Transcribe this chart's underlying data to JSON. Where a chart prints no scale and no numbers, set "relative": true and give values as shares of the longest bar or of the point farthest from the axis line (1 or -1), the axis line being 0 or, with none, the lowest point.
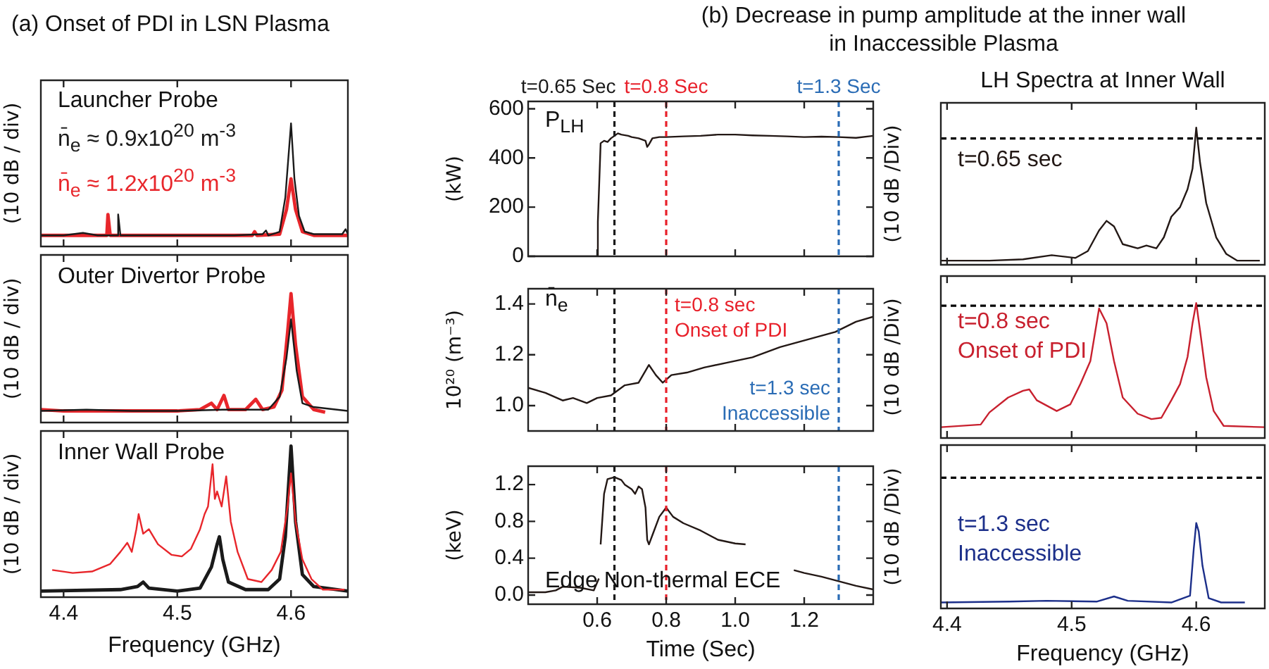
{
  "chart_data": [
    {
      "type": "line",
      "title": "(a) Onset of PDI in LSN Plasma",
      "ylabel": "(10 dB / div)",
      "relative": true,
      "xlim": [
        4.38,
        4.65
      ],
      "xticks": [
        4.4,
        4.5,
        4.6
      ],
      "tick_labels": false,
      "legend": "top left",
      "annotations": [
        "Launcher Probe"
      ],
      "series": [
        {
          "name": "n̄$_{e}$ ≈ 0.9x10$^{20}$ m$^{-3}$",
          "color": "#1a1a1a",
          "x": [
            4.38,
            4.4,
            4.417,
            4.43,
            4.447,
            4.448,
            4.45,
            4.5,
            4.55,
            4.575,
            4.578,
            4.58,
            4.59,
            4.595,
            4.6,
            4.603,
            4.607,
            4.612,
            4.62,
            4.645,
            4.648,
            4.65
          ],
          "values": [
            0.09,
            0.09,
            0.11,
            0.09,
            0.09,
            0.26,
            0.09,
            0.09,
            0.09,
            0.1,
            0.13,
            0.09,
            0.12,
            0.4,
            1.0,
            0.55,
            0.25,
            0.12,
            0.1,
            0.1,
            0.14,
            0.1
          ]
        },
        {
          "name": "n̄$_{e}$ ≈ 1.2x10$^{20}$ m$^{-3}$",
          "color": "#e8262b",
          "x": [
            4.38,
            4.42,
            4.438,
            4.439,
            4.441,
            4.5,
            4.55,
            4.566,
            4.568,
            4.57,
            4.59,
            4.596,
            4.6,
            4.604,
            4.61,
            4.62,
            4.65
          ],
          "values": [
            0.09,
            0.09,
            0.09,
            0.26,
            0.09,
            0.09,
            0.09,
            0.09,
            0.12,
            0.09,
            0.1,
            0.3,
            0.55,
            0.3,
            0.12,
            0.09,
            0.09
          ]
        }
      ]
    },
    {
      "type": "line",
      "ylabel": "(10 dB / div)",
      "relative": true,
      "xlim": [
        4.38,
        4.65
      ],
      "xticks": [
        4.4,
        4.5,
        4.6
      ],
      "tick_labels": false,
      "annotations": [
        "Outer Divertor Probe"
      ],
      "series": [
        {
          "color": "#1a1a1a",
          "x": [
            4.38,
            4.42,
            4.46,
            4.5,
            4.54,
            4.58,
            4.59,
            4.596,
            4.6,
            4.605,
            4.61,
            4.62,
            4.65
          ],
          "values": [
            0.09,
            0.1,
            0.09,
            0.09,
            0.1,
            0.1,
            0.2,
            0.5,
            0.8,
            0.4,
            0.15,
            0.12,
            0.09
          ]
        },
        {
          "color": "#e8262b",
          "x": [
            4.38,
            4.4,
            4.45,
            4.5,
            4.52,
            4.53,
            4.535,
            4.541,
            4.545,
            4.56,
            4.569,
            4.575,
            4.585,
            4.592,
            4.597,
            4.6,
            4.604,
            4.61,
            4.62,
            4.63
          ],
          "values": [
            0.1,
            0.09,
            0.09,
            0.09,
            0.1,
            0.15,
            0.1,
            0.21,
            0.1,
            0.1,
            0.18,
            0.1,
            0.12,
            0.25,
            0.7,
            1.0,
            0.6,
            0.2,
            0.1,
            0.08
          ]
        }
      ]
    },
    {
      "type": "line",
      "ylabel": "(10 dB / div)",
      "xlabel": "Frequency (GHz)",
      "relative": true,
      "xlim": [
        4.38,
        4.65
      ],
      "xticks": [
        4.4,
        4.5,
        4.6
      ],
      "annotations": [
        "Inner Wall Probe"
      ],
      "series": [
        {
          "color": "#e8262b",
          "x": [
            4.39,
            4.408,
            4.425,
            4.441,
            4.45,
            4.456,
            4.46,
            4.464,
            4.466,
            4.47,
            4.475,
            4.483,
            4.495,
            4.504,
            4.512,
            4.52,
            4.524,
            4.527,
            4.531,
            4.533,
            4.535,
            4.539,
            4.543,
            4.547,
            4.553,
            4.562,
            4.574,
            4.583,
            4.591,
            4.597,
            4.6,
            4.604,
            4.61,
            4.618,
            4.628,
            4.647
          ],
          "values": [
            0.18,
            0.16,
            0.17,
            0.22,
            0.3,
            0.36,
            0.3,
            0.45,
            0.55,
            0.42,
            0.45,
            0.35,
            0.28,
            0.27,
            0.32,
            0.45,
            0.55,
            0.6,
            0.88,
            0.65,
            0.7,
            0.6,
            0.8,
            0.5,
            0.3,
            0.12,
            0.1,
            0.18,
            0.3,
            0.6,
            0.82,
            0.5,
            0.25,
            0.12,
            0.05,
            0.05
          ]
        },
        {
          "color": "#1a1a1a",
          "x": [
            4.38,
            4.45,
            4.465,
            4.47,
            4.475,
            4.5,
            4.52,
            4.53,
            4.535,
            4.537,
            4.54,
            4.545,
            4.56,
            4.58,
            4.59,
            4.595,
            4.6,
            4.604,
            4.61,
            4.62,
            4.65
          ],
          "values": [
            0.04,
            0.05,
            0.07,
            0.1,
            0.06,
            0.04,
            0.06,
            0.2,
            0.35,
            0.4,
            0.25,
            0.1,
            0.05,
            0.05,
            0.12,
            0.4,
            1.0,
            0.5,
            0.15,
            0.07,
            0.04
          ]
        }
      ]
    },
    {
      "type": "line",
      "title": "(b) Decrease in pump amplitude at the inner wall in Inaccessible Plasma",
      "ylabel": "(kW)",
      "xlim": [
        0.4,
        1.4
      ],
      "xticks": [
        0.6,
        0.8,
        1,
        1.2
      ],
      "ylim": [
        0,
        630
      ],
      "yticks": [
        0,
        200,
        400,
        600
      ],
      "tick_labels": "y",
      "annotations": [
        "P$_{LH}$"
      ],
      "ref_lines": [
        {
          "axis": "x",
          "value": 0.65,
          "label": "t=0.65 Sec",
          "color": "#1a1a1a",
          "line_style": "dashed"
        },
        {
          "axis": "x",
          "value": 0.8,
          "label": "t=0.8 Sec",
          "color": "#e8202a",
          "line_style": "dashed"
        },
        {
          "axis": "x",
          "value": 1.3,
          "label": "t=1.3 Sec",
          "color": "#2a6cb5",
          "line_style": "dashed"
        }
      ],
      "series": [
        {
          "color": "#231815",
          "x": [
            0.4,
            0.5,
            0.6,
            0.602,
            0.61,
            0.62,
            0.63,
            0.64,
            0.65,
            0.66,
            0.67,
            0.69,
            0.7,
            0.72,
            0.74,
            0.745,
            0.75,
            0.76,
            0.78,
            0.8,
            0.85,
            0.9,
            0.95,
            1.0,
            1.05,
            1.1,
            1.15,
            1.2,
            1.25,
            1.3,
            1.35,
            1.4
          ],
          "values": [
            0,
            0,
            0,
            140,
            460,
            470,
            465,
            480,
            490,
            500,
            495,
            490,
            485,
            480,
            470,
            445,
            455,
            480,
            485,
            485,
            488,
            490,
            495,
            495,
            492,
            490,
            488,
            485,
            487,
            485,
            482,
            490
          ]
        }
      ]
    },
    {
      "type": "line",
      "ylabel": "10²⁰ (m⁻³)",
      "xlim": [
        0.4,
        1.4
      ],
      "xticks": [
        0.6,
        0.8,
        1,
        1.2
      ],
      "ylim": [
        0.9,
        1.46
      ],
      "yticks": [
        {
          "value": 1,
          "label": "1.0"
        },
        1.2,
        1.4
      ],
      "tick_labels": "y",
      "annotations": [
        "n̄$_{e}$"
      ],
      "ref_lines": [
        {
          "axis": "x",
          "value": 0.65,
          "color": "#1a1a1a",
          "line_style": "dashed"
        },
        {
          "axis": "x",
          "value": 0.8,
          "label": "t=0.8 sec\nOnset of PDI",
          "color": "#e8202a",
          "line_style": "dashed"
        },
        {
          "axis": "x",
          "value": 1.3,
          "label": "t=1.3 sec\nInaccessible",
          "color": "#2a6cb5",
          "line_style": "dashed"
        }
      ],
      "series": [
        {
          "color": "#231815",
          "x": [
            0.4,
            0.45,
            0.5,
            0.53,
            0.57,
            0.6,
            0.64,
            0.68,
            0.72,
            0.75,
            0.77,
            0.79,
            0.815,
            0.86,
            0.91,
            0.98,
            1.05,
            1.13,
            1.21,
            1.29,
            1.35,
            1.4
          ],
          "values": [
            1.07,
            1.05,
            1.02,
            1.03,
            1.01,
            1.03,
            1.04,
            1.08,
            1.09,
            1.16,
            1.12,
            1.09,
            1.12,
            1.13,
            1.15,
            1.17,
            1.19,
            1.23,
            1.26,
            1.29,
            1.33,
            1.35
          ]
        }
      ]
    },
    {
      "type": "line",
      "ylabel": "(keV)",
      "xlabel": "Time (Sec)",
      "xlim": [
        0.4,
        1.4
      ],
      "xticks": [
        0.6,
        0.8,
        {
          "value": 1,
          "label": "1.0"
        },
        1.2
      ],
      "ylim": [
        -0.1,
        1.4
      ],
      "yticks": [
        {
          "value": 0,
          "label": "0.0"
        },
        0.4,
        0.8,
        1.2
      ],
      "annotations": [
        "Edge Non-thermal ECE"
      ],
      "ref_lines": [
        {
          "axis": "x",
          "value": 0.65,
          "color": "#1a1a1a",
          "line_style": "dashed"
        },
        {
          "axis": "x",
          "value": 0.8,
          "color": "#e8202a",
          "line_style": "dashed"
        },
        {
          "axis": "x",
          "value": 1.3,
          "color": "#2a6cb5",
          "line_style": "dashed"
        }
      ],
      "series": [
        {
          "color": "#231815",
          "x": [
            0.4,
            0.45,
            0.48,
            0.5,
            0.55,
            0.59,
            0.605,
            0.607,
            0.61,
            0.62,
            0.63,
            0.65,
            0.67,
            0.68,
            0.7,
            0.71,
            0.72,
            0.73,
            0.74,
            0.745,
            0.75,
            0.76,
            0.78,
            0.8,
            0.82,
            0.85,
            0.9,
            0.95,
            1.0,
            1.03,
            1.1,
            1.17,
            1.2,
            1.25,
            1.3,
            1.35,
            1.4
          ],
          "values": [
            0.03,
            0.03,
            0.05,
            0.09,
            0.08,
            0.05,
            0.18,
            null,
            0.55,
            1.1,
            1.26,
            1.28,
            1.25,
            1.2,
            1.15,
            1.1,
            1.18,
            1.15,
            0.95,
            0.6,
            0.55,
            0.65,
            0.85,
            0.95,
            0.85,
            0.78,
            0.7,
            0.6,
            0.56,
            0.55,
            null,
            0.27,
            0.24,
            0.2,
            0.15,
            0.1,
            0.06
          ]
        }
      ]
    },
    {
      "type": "line",
      "title": "LH Spectra at Inner Wall",
      "ylabel": "(10 dB /Div)",
      "relative": true,
      "xlim": [
        4.395,
        4.655
      ],
      "xticks": [
        4.4,
        4.5,
        4.6
      ],
      "tick_labels": false,
      "legend": "top left",
      "ref_lines": [
        {
          "axis": "y",
          "value": 0.92,
          "color": "#000000",
          "line_style": "dashed"
        }
      ],
      "series": [
        {
          "name": "t=0.65 sec",
          "color": "#231815",
          "x": [
            4.395,
            4.434,
            4.461,
            4.484,
            4.503,
            4.513,
            4.522,
            4.528,
            4.534,
            4.541,
            4.553,
            4.56,
            4.568,
            4.574,
            4.58,
            4.587,
            4.593,
            4.597,
            4.6,
            4.603,
            4.608,
            4.616,
            4.624,
            4.633,
            4.651
          ],
          "values": [
            0.03,
            0.03,
            0.04,
            0.07,
            0.05,
            0.1,
            0.25,
            0.32,
            0.28,
            0.15,
            0.12,
            0.14,
            0.12,
            0.2,
            0.35,
            0.42,
            0.55,
            0.7,
            1.0,
            0.75,
            0.45,
            0.2,
            0.08,
            0.03,
            0.03
          ]
        }
      ]
    },
    {
      "type": "line",
      "ylabel": "(10 dB /Div)",
      "relative": true,
      "xlim": [
        4.395,
        4.655
      ],
      "xticks": [
        4.4,
        4.5,
        4.6
      ],
      "tick_labels": false,
      "legend": "top left",
      "ref_lines": [
        {
          "axis": "y",
          "value": 0.98,
          "color": "#000000",
          "line_style": "dashed"
        }
      ],
      "series": [
        {
          "name": "t=0.8 sec\nOnset of PDI",
          "color": "#c8202e",
          "x": [
            4.395,
            4.427,
            4.434,
            4.449,
            4.461,
            4.466,
            4.472,
            4.488,
            4.499,
            4.507,
            4.515,
            4.522,
            4.528,
            4.534,
            4.541,
            4.553,
            4.564,
            4.572,
            4.58,
            4.587,
            4.593,
            4.597,
            4.6,
            4.603,
            4.608,
            4.614,
            4.622,
            4.655
          ],
          "values": [
            0.08,
            0.1,
            0.19,
            0.3,
            0.35,
            0.36,
            0.28,
            0.2,
            0.25,
            0.4,
            0.57,
            0.96,
            0.85,
            0.57,
            0.3,
            0.18,
            0.14,
            0.15,
            0.28,
            0.4,
            0.6,
            0.85,
            1.0,
            0.8,
            0.45,
            0.2,
            0.09,
            0.08
          ]
        }
      ]
    },
    {
      "type": "line",
      "ylabel": "(10 dB /Div)",
      "xlabel": "Frequency (GHz)",
      "relative": true,
      "xlim": [
        4.395,
        4.655
      ],
      "xticks": [
        4.4,
        4.5,
        4.6
      ],
      "legend": "left",
      "ref_lines": [
        {
          "axis": "y",
          "value": 1.53,
          "color": "#000000",
          "line_style": "dashed"
        }
      ],
      "series": [
        {
          "name": "t=1.3 sec\nInaccessible",
          "color": "#1c2f8a",
          "x": [
            4.395,
            4.45,
            4.48,
            4.52,
            4.534,
            4.545,
            4.58,
            4.595,
            4.598,
            4.6,
            4.602,
            4.605,
            4.61,
            4.62,
            4.639
          ],
          "values": [
            0.07,
            0.08,
            0.09,
            0.08,
            0.14,
            0.09,
            0.07,
            0.15,
            0.7,
            1.0,
            0.9,
            0.5,
            0.12,
            0.07,
            0.07
          ]
        }
      ]
    }
  ]
}
